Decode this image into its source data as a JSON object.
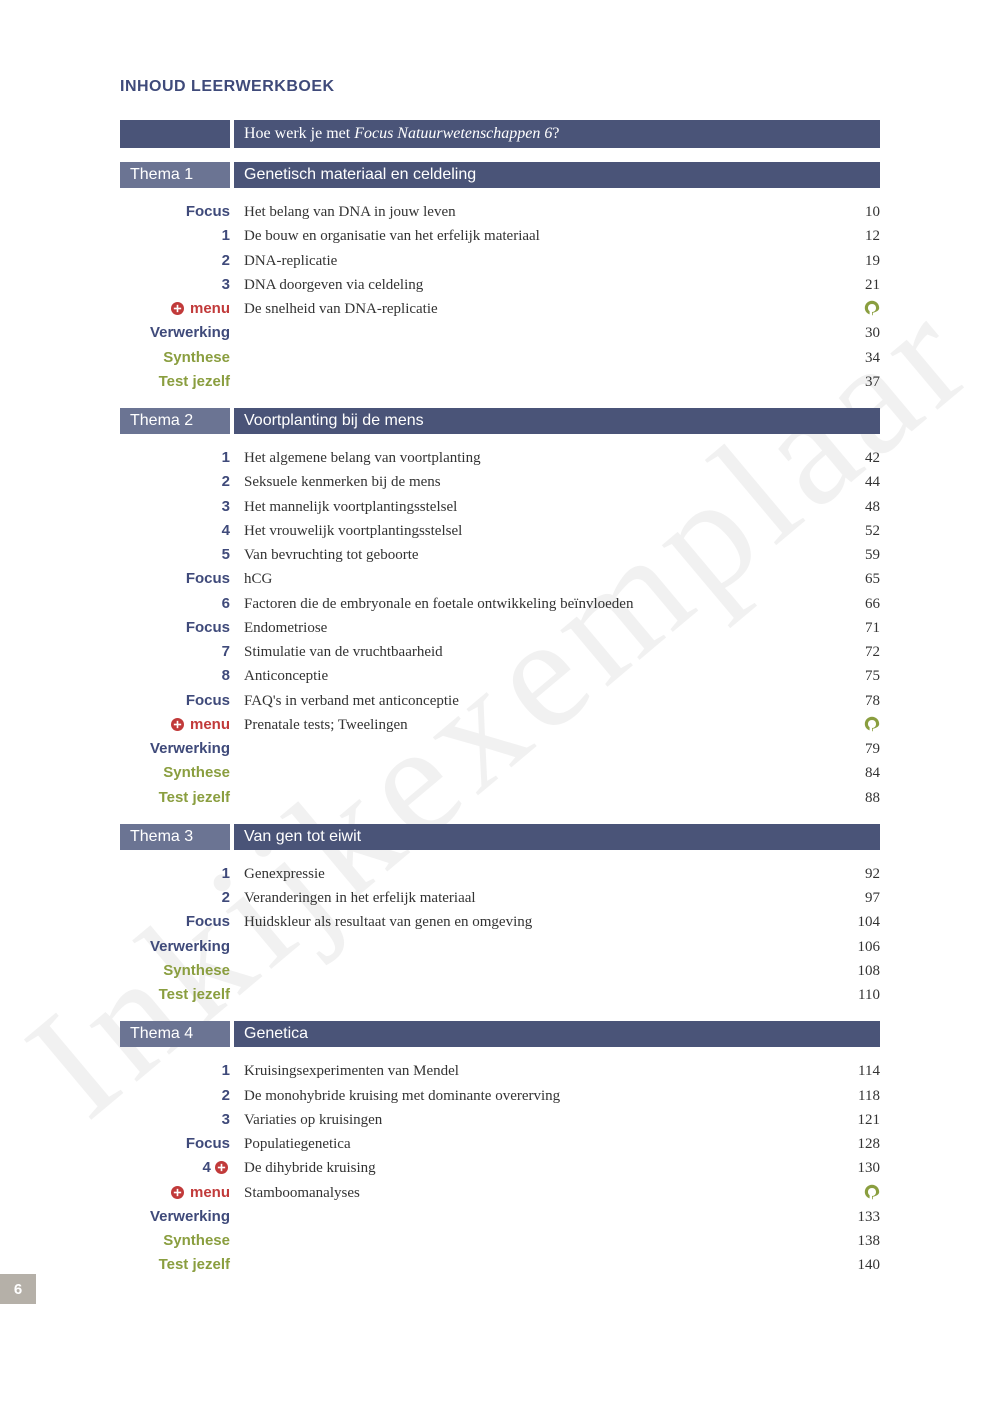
{
  "colors": {
    "heading_blue": "#3f4a7a",
    "bar_dark": "#4a5478",
    "bar_light": "#6b7493",
    "green": "#8a9e3f",
    "red": "#c13a3a",
    "page_box": "#b5b0a8",
    "text": "#333333"
  },
  "watermark": "Inkijkexemplaar",
  "header": "INHOUD LEERWERKBOEK",
  "intro_prefix": "Hoe werk je met ",
  "intro_italic": "Focus Natuurwetenschappen 6",
  "intro_suffix": "?",
  "page_number": "6",
  "themas": [
    {
      "label": "Thema 1",
      "title": "Genetisch materiaal en celdeling",
      "entries": [
        {
          "label": "Focus",
          "color": "blue",
          "text": "Het belang van DNA in jouw leven",
          "page": "10"
        },
        {
          "label": "1",
          "color": "blue",
          "text": "De bouw en organisatie van het erfelijk materiaal",
          "page": "12"
        },
        {
          "label": "2",
          "color": "blue",
          "text": "DNA-replicatie",
          "page": "19"
        },
        {
          "label": "3",
          "color": "blue",
          "text": "DNA doorgeven via celdeling",
          "page": "21"
        },
        {
          "label": "menu",
          "color": "red",
          "icon": "plus",
          "text": "De snelheid van DNA-replicatie",
          "page_icon": "p"
        },
        {
          "label": "Verwerking",
          "color": "blue",
          "text": "",
          "page": "30"
        },
        {
          "label": "Synthese",
          "color": "green",
          "text": "",
          "page": "34"
        },
        {
          "label": "Test jezelf",
          "color": "green",
          "text": "",
          "page": "37"
        }
      ]
    },
    {
      "label": "Thema 2",
      "title": "Voortplanting bij de mens",
      "entries": [
        {
          "label": "1",
          "color": "blue",
          "text": "Het algemene belang van voortplanting",
          "page": "42"
        },
        {
          "label": "2",
          "color": "blue",
          "text": "Seksuele kenmerken bij de mens",
          "page": "44"
        },
        {
          "label": "3",
          "color": "blue",
          "text": "Het mannelijk voortplantingsstelsel",
          "page": "48"
        },
        {
          "label": "4",
          "color": "blue",
          "text": "Het vrouwelijk voortplantingsstelsel",
          "page": "52"
        },
        {
          "label": "5",
          "color": "blue",
          "text": "Van bevruchting tot geboorte",
          "page": "59"
        },
        {
          "label": "Focus",
          "color": "blue",
          "text": "hCG",
          "page": "65"
        },
        {
          "label": "6",
          "color": "blue",
          "text": "Factoren die de embryonale en foetale ontwikkeling beïnvloeden",
          "page": "66"
        },
        {
          "label": "Focus",
          "color": "blue",
          "text": "Endometriose",
          "page": "71"
        },
        {
          "label": "7",
          "color": "blue",
          "text": "Stimulatie van de vruchtbaarheid",
          "page": "72"
        },
        {
          "label": "8",
          "color": "blue",
          "text": "Anticonceptie",
          "page": "75"
        },
        {
          "label": "Focus",
          "color": "blue",
          "text": "FAQ's in verband met anticonceptie",
          "page": "78"
        },
        {
          "label": "menu",
          "color": "red",
          "icon": "plus",
          "text": "Prenatale tests; Tweelingen",
          "page_icon": "p"
        },
        {
          "label": "Verwerking",
          "color": "blue",
          "text": "",
          "page": "79"
        },
        {
          "label": "Synthese",
          "color": "green",
          "text": "",
          "page": "84"
        },
        {
          "label": "Test jezelf",
          "color": "green",
          "text": "",
          "page": "88"
        }
      ]
    },
    {
      "label": "Thema 3",
      "title": "Van gen tot eiwit",
      "entries": [
        {
          "label": "1",
          "color": "blue",
          "text": "Genexpressie",
          "page": "92"
        },
        {
          "label": "2",
          "color": "blue",
          "text": "Veranderingen in het erfelijk materiaal",
          "page": "97"
        },
        {
          "label": "Focus",
          "color": "blue",
          "text": "Huidskleur als resultaat van genen en omgeving",
          "page": "104"
        },
        {
          "label": "Verwerking",
          "color": "blue",
          "text": "",
          "page": "106"
        },
        {
          "label": "Synthese",
          "color": "green",
          "text": "",
          "page": "108"
        },
        {
          "label": "Test jezelf",
          "color": "green",
          "text": "",
          "page": "110"
        }
      ]
    },
    {
      "label": "Thema 4",
      "title": "Genetica",
      "entries": [
        {
          "label": "1",
          "color": "blue",
          "text": "Kruisingsexperimenten van Mendel",
          "page": "114"
        },
        {
          "label": "2",
          "color": "blue",
          "text": "De monohybride kruising met dominante overerving",
          "page": "118"
        },
        {
          "label": "3",
          "color": "blue",
          "text": "Variaties op kruisingen",
          "page": "121"
        },
        {
          "label": "Focus",
          "color": "blue",
          "text": "Populatiegenetica",
          "page": "128"
        },
        {
          "label": "4",
          "color": "blue",
          "trailing_icon": "plus",
          "text": "De dihybride kruising",
          "page": "130"
        },
        {
          "label": "menu",
          "color": "red",
          "icon": "plus",
          "text": "Stamboomanalyses",
          "page_icon": "p"
        },
        {
          "label": "Verwerking",
          "color": "blue",
          "text": "",
          "page": "133"
        },
        {
          "label": "Synthese",
          "color": "green",
          "text": "",
          "page": "138"
        },
        {
          "label": "Test jezelf",
          "color": "green",
          "text": "",
          "page": "140"
        }
      ]
    }
  ]
}
